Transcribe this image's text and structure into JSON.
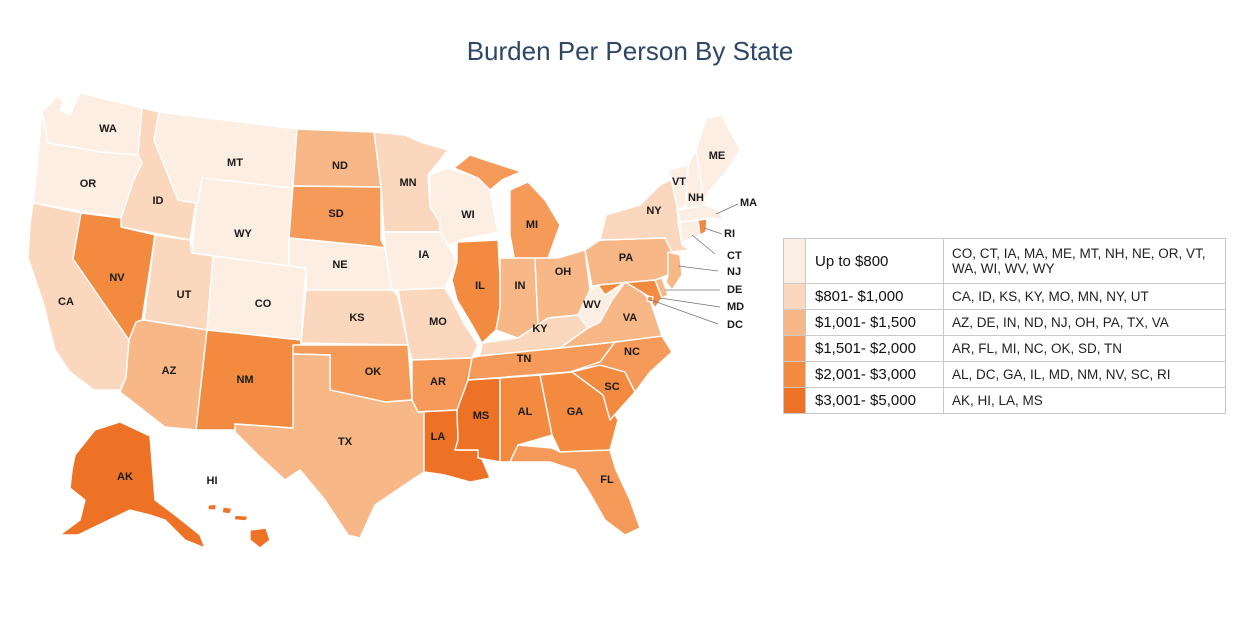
{
  "title": "Burden Per Person By State",
  "colors": {
    "c1": "#fdeee4",
    "c2": "#fbd7bd",
    "c3": "#f8b787",
    "c4": "#f59a58",
    "c5": "#f28a40",
    "c6": "#ee7226"
  },
  "legend": [
    {
      "range": "Up to $800",
      "color": "#fdeee4",
      "states": "CO, CT, IA, MA, ME, MT, NH, NE, OR, VT, WA, WI, WV, WY"
    },
    {
      "range": "$801- $1,000",
      "color": "#fbd7bd",
      "states": "CA, ID, KS, KY, MO, MN, NY, UT"
    },
    {
      "range": "$1,001- $1,500",
      "color": "#f8b787",
      "states": "AZ, DE, IN, ND, NJ, OH, PA, TX, VA"
    },
    {
      "range": "$1,501- $2,000",
      "color": "#f59a58",
      "states": "AR, FL, MI, NC, OK, SD, TN"
    },
    {
      "range": "$2,001- $3,000",
      "color": "#f28a40",
      "states": "AL, DC, GA, IL, MD, NM, NV, SC, RI"
    },
    {
      "range": "$3,001- $5,000",
      "color": "#ee7226",
      "states": "AK, HI, LA, MS"
    }
  ],
  "state_labels": {
    "WA": "WA",
    "OR": "OR",
    "CA": "CA",
    "ID": "ID",
    "NV": "NV",
    "MT": "MT",
    "WY": "WY",
    "UT": "UT",
    "AZ": "AZ",
    "CO": "CO",
    "NM": "NM",
    "ND": "ND",
    "SD": "SD",
    "NE": "NE",
    "KS": "KS",
    "OK": "OK",
    "TX": "TX",
    "MN": "MN",
    "IA": "IA",
    "MO": "MO",
    "AR": "AR",
    "LA": "LA",
    "WI": "WI",
    "IL": "IL",
    "MS": "MS",
    "MI": "MI",
    "IN": "IN",
    "KY": "KY",
    "TN": "TN",
    "AL": "AL",
    "OH": "OH",
    "WV": "WV",
    "GA": "GA",
    "FL": "FL",
    "SC": "SC",
    "NC": "NC",
    "VA": "VA",
    "PA": "PA",
    "NY": "NY",
    "VT": "VT",
    "NH": "NH",
    "ME": "ME",
    "MA": "MA",
    "RI": "RI",
    "CT": "CT",
    "NJ": "NJ",
    "DE": "DE",
    "MD": "MD",
    "DC": "DC",
    "AK": "AK",
    "HI": "HI"
  }
}
